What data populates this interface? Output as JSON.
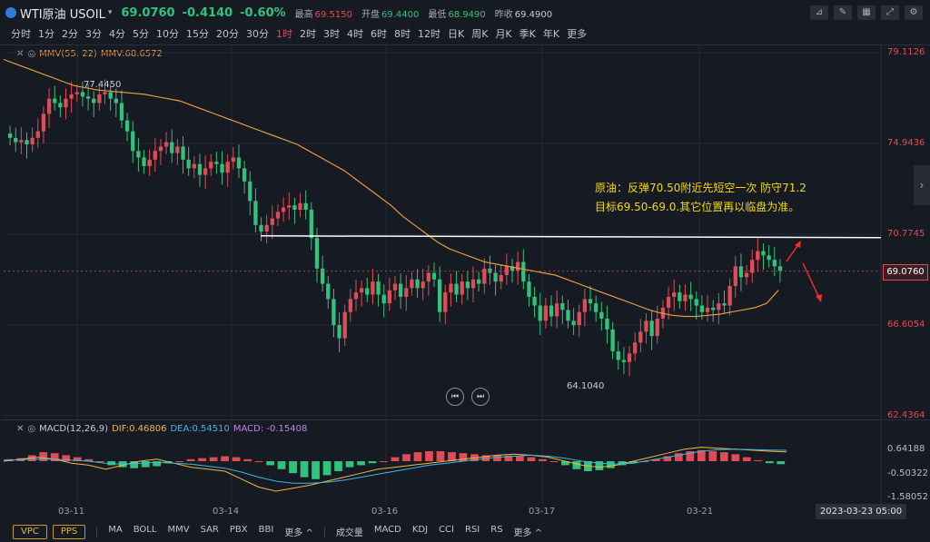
{
  "header": {
    "symbol": "WTI原油 USOIL",
    "price": "69.0760",
    "change": "-0.4140",
    "change_pct": "-0.60%",
    "stats": [
      {
        "label": "最高",
        "value": "69.5150",
        "color": "#e04c55"
      },
      {
        "label": "开盘",
        "value": "69.4400",
        "color": "#31c27c"
      },
      {
        "label": "最低",
        "value": "68.9490",
        "color": "#31c27c"
      },
      {
        "label": "昨收",
        "value": "69.4900",
        "color": "#c9ccd3"
      }
    ],
    "icons": [
      "line-tool-icon",
      "pen-icon",
      "layout-icon",
      "expand-icon",
      "settings-icon"
    ]
  },
  "periods": [
    "分时",
    "1分",
    "2分",
    "3分",
    "4分",
    "5分",
    "10分",
    "15分",
    "20分",
    "30分",
    "1时",
    "2时",
    "3时",
    "4时",
    "6时",
    "8时",
    "12时",
    "日K",
    "周K",
    "月K",
    "季K",
    "年K",
    "更多"
  ],
  "active_period": "1时",
  "main_indicator": {
    "name": "MMV(55, 22)",
    "value": "MMV:68.6572"
  },
  "macd_indicator": {
    "name": "MACD(12,26,9)",
    "dif": "DIF:0.46806",
    "dea": "DEA:0.54510",
    "macd": "MACD: -0.15408"
  },
  "annotation": {
    "line1": "原油：反弹70.50附近先短空一次 防守71.2",
    "line2": "目标69.50-69.0.其它位置再以临盘为准。"
  },
  "high_label": "77.4450",
  "low_label": "64.1040",
  "footer": {
    "date_box": "2023-03-23 05:00",
    "btn_vpc": "VPC",
    "btn_pps": "PPS",
    "main_items": [
      "MA",
      "BOLL",
      "MMV",
      "SAR",
      "PBX",
      "BBI",
      "更多 ^"
    ],
    "sub_items": [
      "成交量",
      "MACD",
      "KDJ",
      "CCI",
      "RSI",
      "RS",
      "更多 ^"
    ]
  },
  "colors": {
    "up": "#e04c55",
    "down": "#31c27c",
    "ma": "#e89a3c",
    "dif": "#f5b63a",
    "dea": "#3fb6e6"
  },
  "chart_data": {
    "type": "candlestick",
    "price_axis": {
      "labels": [
        "79.1126",
        "74.9436",
        "70.7745",
        "66.6054",
        "62.4364"
      ],
      "min": 62.4364,
      "max": 79.1126
    },
    "current_price": "69.0760",
    "resistance_level": 70.7,
    "x_labels": [
      "03-11",
      "03-14",
      "03-16",
      "03-17",
      "03-21"
    ],
    "macd_axis": {
      "labels": [
        "0.64188",
        "-0.50322",
        "-1.58052"
      ]
    },
    "close_series": [
      75.2,
      75.0,
      75.1,
      74.9,
      75.2,
      75.5,
      76.3,
      77.0,
      76.8,
      76.6,
      77.0,
      77.2,
      77.3,
      77.1,
      77.0,
      76.8,
      77.2,
      77.3,
      77.0,
      76.8,
      76.0,
      75.5,
      74.6,
      74.3,
      73.9,
      74.2,
      74.6,
      74.8,
      75.0,
      74.5,
      74.8,
      74.2,
      73.8,
      74.0,
      73.5,
      73.8,
      74.1,
      74.0,
      73.6,
      74.1,
      74.3,
      73.8,
      73.2,
      72.3,
      71.2,
      70.9,
      71.2,
      71.5,
      71.8,
      72.0,
      72.1,
      71.9,
      72.2,
      71.9,
      70.6,
      69.2,
      68.5,
      67.8,
      66.6,
      66.0,
      67.2,
      67.8,
      68.1,
      68.3,
      68.0,
      68.6,
      68.0,
      67.6,
      68.2,
      68.5,
      67.9,
      68.3,
      68.7,
      68.3,
      68.6,
      69.0,
      68.7,
      67.2,
      68.1,
      68.5,
      68.0,
      68.6,
      68.3,
      68.7,
      68.5,
      69.2,
      69.0,
      68.6,
      68.9,
      69.3,
      69.1,
      69.5,
      68.6,
      67.9,
      67.5,
      66.8,
      67.5,
      67.0,
      67.6,
      67.3,
      66.8,
      66.6,
      67.2,
      67.8,
      67.6,
      67.2,
      66.9,
      66.4,
      65.4,
      65.0,
      64.9,
      65.3,
      65.8,
      66.3,
      66.8,
      66.1,
      66.9,
      67.4,
      67.9,
      68.1,
      67.7,
      68.0,
      67.8,
      67.5,
      67.2,
      67.4,
      67.3,
      67.6,
      67.5,
      68.4,
      69.3,
      68.8,
      69.0,
      69.6,
      70.0,
      69.8,
      69.6,
      69.3,
      69.1
    ],
    "ma_series": [
      78.8,
      78.6,
      78.4,
      78.2,
      78.0,
      77.8,
      77.6,
      77.5,
      77.4,
      77.35,
      77.3,
      77.25,
      77.2,
      77.1,
      77.0,
      76.9,
      76.7,
      76.5,
      76.3,
      76.1,
      75.9,
      75.7,
      75.5,
      75.3,
      75.1,
      74.9,
      74.6,
      74.3,
      74.0,
      73.7,
      73.3,
      72.9,
      72.5,
      72.1,
      71.6,
      71.2,
      70.8,
      70.4,
      70.1,
      69.9,
      69.7,
      69.5,
      69.4,
      69.3,
      69.2,
      69.1,
      69.0,
      68.9,
      68.7,
      68.5,
      68.3,
      68.1,
      67.9,
      67.7,
      67.5,
      67.3,
      67.15,
      67.05,
      67.0,
      67.0,
      67.05,
      67.1,
      67.2,
      67.3,
      67.4,
      67.6,
      68.2
    ],
    "macd_values": [
      0.1,
      0.15,
      0.3,
      0.45,
      0.4,
      0.3,
      0.2,
      0.1,
      0.0,
      -0.2,
      -0.3,
      -0.35,
      -0.3,
      -0.25,
      -0.1,
      0.0,
      0.1,
      0.15,
      0.2,
      0.25,
      0.2,
      0.1,
      0.0,
      -0.2,
      -0.4,
      -0.6,
      -0.8,
      -0.9,
      -0.7,
      -0.5,
      -0.3,
      -0.2,
      -0.1,
      0.0,
      0.2,
      0.35,
      0.45,
      0.5,
      0.5,
      0.45,
      0.4,
      0.35,
      0.3,
      0.3,
      0.28,
      0.25,
      0.2,
      0.1,
      0.0,
      -0.2,
      -0.4,
      -0.5,
      -0.45,
      -0.35,
      -0.2,
      -0.1,
      0.0,
      0.1,
      0.25,
      0.4,
      0.5,
      0.55,
      0.5,
      0.45,
      0.35,
      0.2,
      0.05,
      -0.1,
      -0.15
    ],
    "dif_series": [
      0.0,
      0.1,
      0.2,
      0.1,
      -0.1,
      -0.2,
      -0.4,
      -0.2,
      0.0,
      0.1,
      -0.1,
      -0.3,
      -0.4,
      -0.5,
      -0.9,
      -1.3,
      -1.5,
      -1.35,
      -1.2,
      -1.0,
      -0.8,
      -0.6,
      -0.4,
      -0.3,
      -0.2,
      -0.1,
      0.0,
      0.1,
      0.2,
      0.3,
      0.35,
      0.3,
      0.2,
      0.0,
      -0.2,
      -0.3,
      -0.2,
      0.0,
      0.2,
      0.4,
      0.6,
      0.7,
      0.65,
      0.6,
      0.55,
      0.5,
      0.47
    ],
    "dea_series": [
      0.05,
      0.08,
      0.1,
      0.1,
      0.05,
      0.0,
      -0.1,
      -0.15,
      -0.1,
      -0.05,
      -0.1,
      -0.15,
      -0.25,
      -0.35,
      -0.55,
      -0.8,
      -1.0,
      -1.1,
      -1.1,
      -1.05,
      -0.95,
      -0.8,
      -0.65,
      -0.5,
      -0.35,
      -0.2,
      -0.1,
      0.0,
      0.1,
      0.2,
      0.25,
      0.3,
      0.25,
      0.15,
      0.0,
      -0.1,
      -0.15,
      -0.1,
      0.05,
      0.2,
      0.35,
      0.5,
      0.58,
      0.6,
      0.58,
      0.56,
      0.545
    ]
  }
}
